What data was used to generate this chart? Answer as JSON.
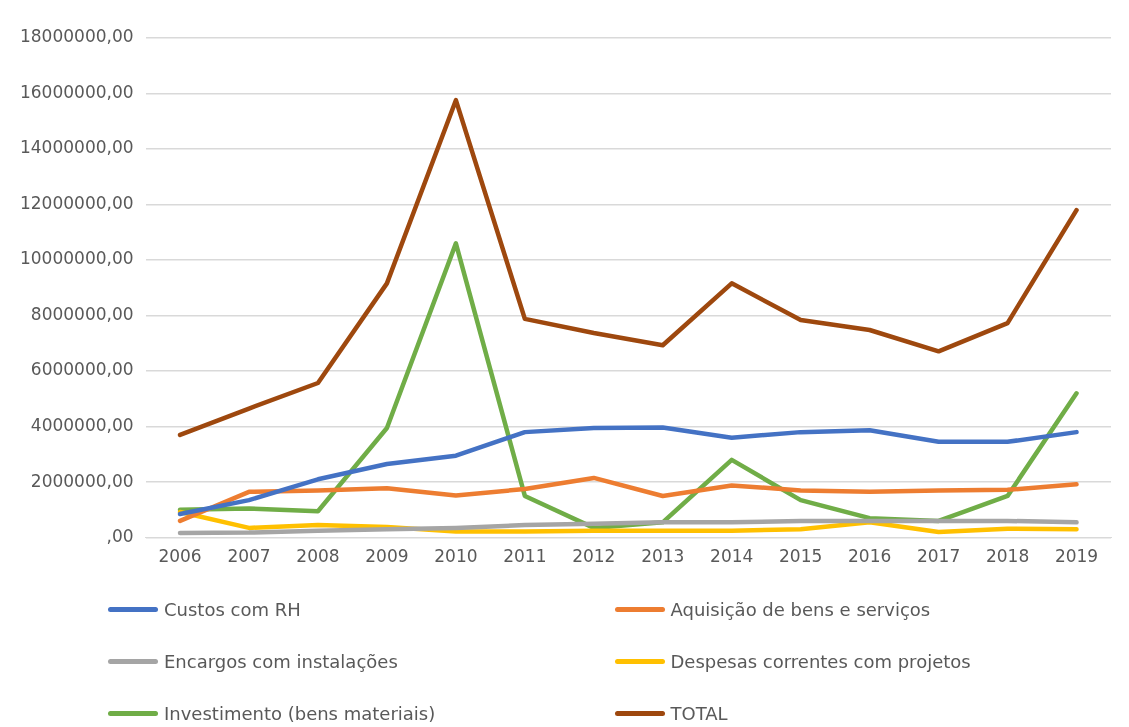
{
  "chart_data": {
    "type": "line",
    "categories": [
      "2006",
      "2007",
      "2008",
      "2009",
      "2010",
      "2011",
      "2012",
      "2013",
      "2014",
      "2015",
      "2016",
      "2017",
      "2018",
      "2019"
    ],
    "series": [
      {
        "name": "Custos com RH",
        "color": "#4472c4",
        "values": [
          850000,
          1350000,
          2100000,
          2650000,
          2950000,
          3800000,
          3950000,
          3970000,
          3600000,
          3800000,
          3870000,
          3450000,
          3450000,
          3800000
        ]
      },
      {
        "name": "Aquisição de bens e serviços",
        "color": "#ed7d31",
        "values": [
          600000,
          1650000,
          1700000,
          1780000,
          1520000,
          1750000,
          2150000,
          1500000,
          1880000,
          1700000,
          1650000,
          1700000,
          1720000,
          1920000
        ]
      },
      {
        "name": "Encargos com instalações",
        "color": "#a5a5a5",
        "values": [
          170000,
          180000,
          250000,
          300000,
          350000,
          450000,
          500000,
          550000,
          550000,
          600000,
          600000,
          600000,
          600000,
          550000
        ]
      },
      {
        "name": "Despesas correntes com projetos",
        "color": "#ffc000",
        "values": [
          920000,
          350000,
          450000,
          380000,
          220000,
          220000,
          250000,
          250000,
          250000,
          300000,
          550000,
          200000,
          320000,
          300000
        ]
      },
      {
        "name": "Investimento (bens materiais)",
        "color": "#70ad47",
        "values": [
          1000000,
          1050000,
          950000,
          3950000,
          10600000,
          1500000,
          350000,
          550000,
          2800000,
          1350000,
          700000,
          600000,
          1500000,
          5200000
        ]
      },
      {
        "name": "TOTAL",
        "color": "#9e480e",
        "values": [
          3700000,
          4650000,
          5570000,
          9160000,
          15760000,
          7880000,
          7370000,
          6930000,
          9160000,
          7840000,
          7480000,
          6710000,
          7730000,
          11800000
        ]
      }
    ],
    "ylim": [
      0,
      18000000
    ],
    "yticks": [
      {
        "value": 0,
        "label": ",00"
      },
      {
        "value": 2000000,
        "label": "2000000,00"
      },
      {
        "value": 4000000,
        "label": "4000000,00"
      },
      {
        "value": 6000000,
        "label": "6000000,00"
      },
      {
        "value": 8000000,
        "label": "8000000,00"
      },
      {
        "value": 10000000,
        "label": "10000000,00"
      },
      {
        "value": 12000000,
        "label": "12000000,00"
      },
      {
        "value": 14000000,
        "label": "14000000,00"
      },
      {
        "value": 16000000,
        "label": "16000000,00"
      },
      {
        "value": 18000000,
        "label": "18000000,00"
      }
    ],
    "grid": "y",
    "legend": "bottom",
    "marker": "none",
    "line_style": "solid"
  }
}
